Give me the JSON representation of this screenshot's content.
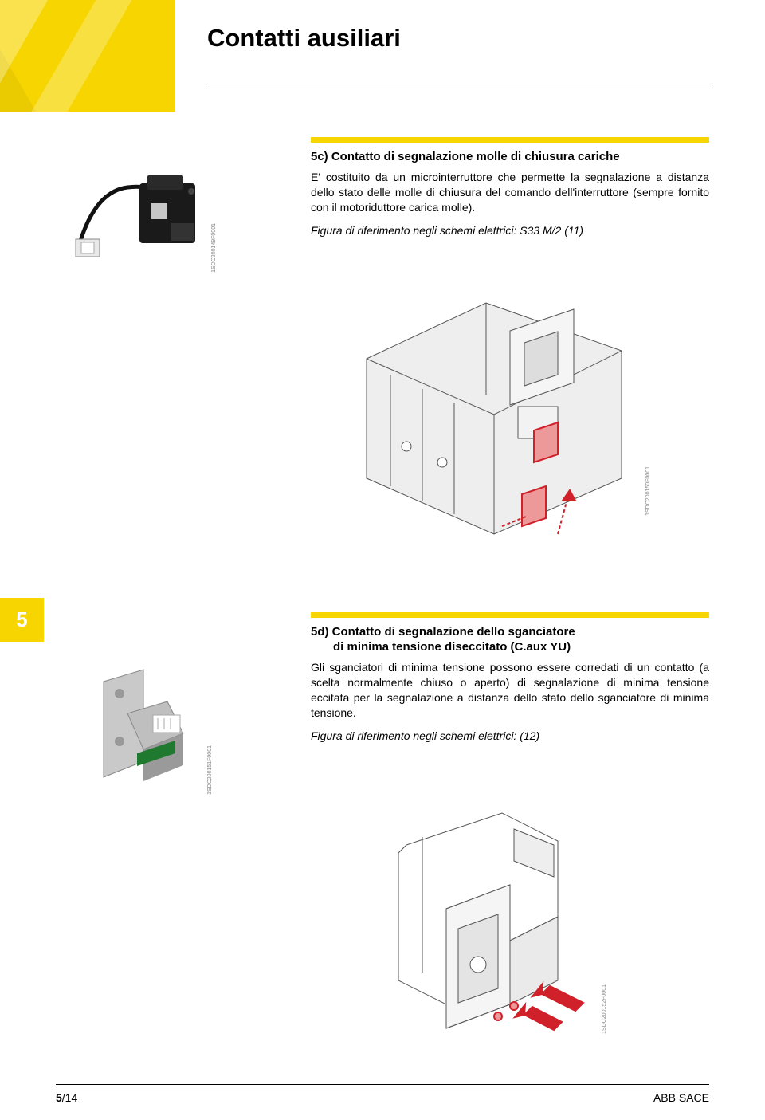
{
  "page_title": "Contatti ausiliari",
  "colors": {
    "accent_yellow": "#f6d500",
    "text": "#000000",
    "code_gray": "#888888",
    "background": "#ffffff",
    "highlight": "#d0202a",
    "wire_stroke": "#555555",
    "wire_fill": "#eeeeee"
  },
  "section_5c": {
    "heading": "5c) Contatto di segnalazione molle di chiusura cariche",
    "body": "E' costituito da un microinterruttore che permette la segnalazione a distanza dello stato delle molle di chiusura del comando dell'interruttore (sempre fornito con il motoriduttore carica molle).",
    "reference": "Figura di riferimento negli schemi elettrici: S33 M/2 (11)"
  },
  "section_5d": {
    "heading": "5d) Contatto di segnalazione dello sganciatore",
    "subheading": "di minima tensione diseccitato (C.aux YU)",
    "body": "Gli sganciatori di minima tensione possono essere corredati di un contatto (a scelta normalmente chiuso o aperto) di segnalazione di minima tensione eccitata per la segnalazione a distanza dello stato dello sganciatore di minima tensione.",
    "reference": "Figura di riferimento negli schemi elettrici: (12)"
  },
  "side_tab": "5",
  "image_codes": {
    "product1": "1SDC200149F0001",
    "illus1": "1SDC200150F0001",
    "product2": "1SDC200151F0001",
    "illus2": "1SDC200152F0001"
  },
  "footer": {
    "page": "5/14",
    "brand": "ABB SACE"
  }
}
